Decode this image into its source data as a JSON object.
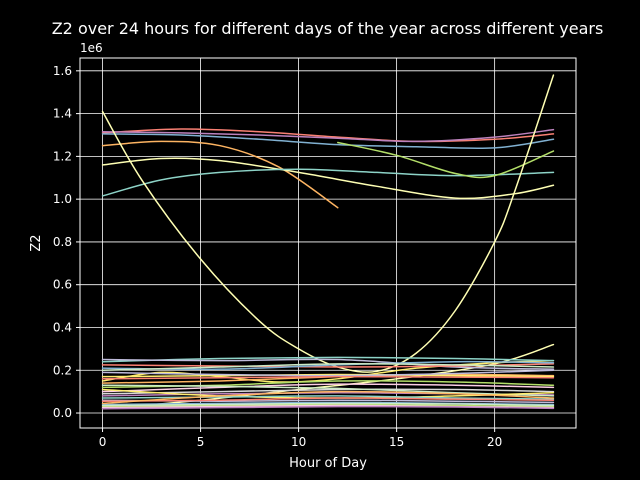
{
  "chart_data": {
    "type": "line",
    "title": "Z2 over 24 hours for different days of the year across different years",
    "xlabel": "Hour of Day",
    "ylabel": "Z2",
    "y_offset_label": "1e6",
    "xlim": [
      -1.15,
      24.15
    ],
    "ylim": [
      -70000,
      1660000
    ],
    "x_ticks": [
      0,
      5,
      10,
      15,
      20
    ],
    "y_ticks": [
      0,
      200000,
      400000,
      600000,
      800000,
      1000000,
      1200000,
      1400000,
      1600000
    ],
    "y_tick_labels": [
      "0.0",
      "0.2",
      "0.4",
      "0.6",
      "0.8",
      "1.0",
      "1.2",
      "1.4",
      "1.6"
    ],
    "grid": true,
    "background": "#000000",
    "foreground": "#ffffff",
    "series": [
      {
        "color": "#fa8174",
        "x": [
          0,
          4,
          8,
          12,
          16,
          20,
          23
        ],
        "y": [
          1310000,
          1328000,
          1315000,
          1290000,
          1270000,
          1280000,
          1305000
        ]
      },
      {
        "color": "#81b1d2",
        "x": [
          0,
          4,
          8,
          12,
          16,
          20,
          23
        ],
        "y": [
          1305000,
          1300000,
          1280000,
          1255000,
          1245000,
          1240000,
          1280000
        ]
      },
      {
        "color": "#bc82bd",
        "x": [
          0,
          4,
          8,
          12,
          16,
          20,
          23
        ],
        "y": [
          1315000,
          1310000,
          1300000,
          1285000,
          1270000,
          1290000,
          1325000
        ]
      },
      {
        "color": "#fdb462",
        "x": [
          0,
          3,
          6,
          9,
          12
        ],
        "y": [
          1250000,
          1270000,
          1250000,
          1150000,
          960000
        ]
      },
      {
        "color": "#feffb3",
        "x": [
          0,
          3,
          6,
          10,
          14,
          18,
          21,
          23
        ],
        "y": [
          1160000,
          1190000,
          1180000,
          1125000,
          1060000,
          1005000,
          1025000,
          1065000
        ]
      },
      {
        "color": "#8dd3c7",
        "x": [
          0,
          3,
          6,
          10,
          14,
          18,
          23
        ],
        "y": [
          1015000,
          1090000,
          1125000,
          1140000,
          1125000,
          1110000,
          1125000
        ]
      },
      {
        "color": "#b3de69",
        "x": [
          12,
          15,
          18,
          20,
          23
        ],
        "y": [
          1265000,
          1205000,
          1120000,
          1110000,
          1225000
        ]
      },
      {
        "color": "#ffffb3",
        "x": [
          0,
          2,
          5,
          8,
          10,
          12,
          14,
          16,
          18,
          20,
          21,
          23
        ],
        "y": [
          1410000,
          1090000,
          720000,
          430000,
          300000,
          215000,
          195000,
          280000,
          480000,
          800000,
          1030000,
          1580000
        ]
      },
      {
        "color": "#ffffb3",
        "x": [
          0,
          5,
          10,
          15,
          20,
          23
        ],
        "y": [
          20000,
          60000,
          110000,
          160000,
          230000,
          320000
        ]
      },
      {
        "color": "#ffed6f",
        "x": [
          0,
          3,
          6,
          9,
          12,
          16,
          20,
          23
        ],
        "y": [
          150000,
          190000,
          170000,
          145000,
          160000,
          210000,
          235000,
          245000
        ]
      },
      {
        "color": "#8dd3c7",
        "x": [
          0,
          6,
          12,
          18,
          23
        ],
        "y": [
          240000,
          255000,
          260000,
          255000,
          245000
        ]
      },
      {
        "color": "#bebada",
        "x": [
          0,
          6,
          12,
          18,
          23
        ],
        "y": [
          250000,
          245000,
          250000,
          215000,
          205000
        ]
      },
      {
        "color": "#fb8072",
        "x": [
          0,
          6,
          12,
          18,
          23
        ],
        "y": [
          225000,
          220000,
          215000,
          220000,
          230000
        ]
      },
      {
        "color": "#80b1d3",
        "x": [
          0,
          6,
          12,
          18,
          23
        ],
        "y": [
          210000,
          205000,
          225000,
          240000,
          235000
        ]
      },
      {
        "color": "#ccebc5",
        "x": [
          0,
          6,
          12,
          18,
          23
        ],
        "y": [
          200000,
          215000,
          230000,
          225000,
          215000
        ]
      },
      {
        "color": "#fdb462",
        "x": [
          0,
          6,
          12,
          18,
          23
        ],
        "y": [
          140000,
          150000,
          170000,
          180000,
          175000
        ]
      },
      {
        "color": "#b3de69",
        "x": [
          0,
          6,
          12,
          18,
          23
        ],
        "y": [
          120000,
          130000,
          150000,
          145000,
          130000
        ]
      },
      {
        "color": "#fccde5",
        "x": [
          0,
          6,
          12,
          18,
          23
        ],
        "y": [
          100000,
          120000,
          135000,
          130000,
          120000
        ]
      },
      {
        "color": "#d9d9d9",
        "x": [
          0,
          6,
          12,
          18,
          23
        ],
        "y": [
          90000,
          100000,
          110000,
          110000,
          100000
        ]
      },
      {
        "color": "#bc80bd",
        "x": [
          0,
          6,
          12,
          18,
          23
        ],
        "y": [
          80000,
          90000,
          95000,
          90000,
          85000
        ]
      },
      {
        "color": "#ccebc5",
        "x": [
          0,
          6,
          12,
          18,
          23
        ],
        "y": [
          130000,
          125000,
          115000,
          95000,
          80000
        ]
      },
      {
        "color": "#ffed6f",
        "x": [
          0,
          6,
          12,
          18,
          23
        ],
        "y": [
          110000,
          80000,
          70000,
          80000,
          95000
        ]
      },
      {
        "color": "#8dd3c7",
        "x": [
          0,
          6,
          12,
          18,
          23
        ],
        "y": [
          70000,
          75000,
          80000,
          70000,
          65000
        ]
      },
      {
        "color": "#bebada",
        "x": [
          0,
          6,
          12,
          18,
          23
        ],
        "y": [
          60000,
          55000,
          60000,
          55000,
          50000
        ]
      },
      {
        "color": "#fb8072",
        "x": [
          0,
          6,
          12,
          18,
          23
        ],
        "y": [
          55000,
          60000,
          70000,
          65000,
          60000
        ]
      },
      {
        "color": "#80b1d3",
        "x": [
          0,
          6,
          12,
          18,
          23
        ],
        "y": [
          40000,
          45000,
          50000,
          45000,
          40000
        ]
      },
      {
        "color": "#fdb462",
        "x": [
          0,
          6,
          12,
          18,
          23
        ],
        "y": [
          45000,
          80000,
          100000,
          90000,
          70000
        ]
      },
      {
        "color": "#b3de69",
        "x": [
          0,
          6,
          12,
          18,
          23
        ],
        "y": [
          30000,
          35000,
          40000,
          35000,
          30000
        ]
      },
      {
        "color": "#fccde5",
        "x": [
          0,
          6,
          12,
          18,
          23
        ],
        "y": [
          25000,
          30000,
          35000,
          30000,
          25000
        ]
      },
      {
        "color": "#bc80bd",
        "x": [
          0,
          6,
          12,
          18,
          23
        ],
        "y": [
          20000,
          25000,
          30000,
          28000,
          22000
        ]
      },
      {
        "color": "#ccebc5",
        "x": [
          0,
          6,
          12,
          18,
          23
        ],
        "y": [
          35000,
          40000,
          45000,
          42000,
          35000
        ]
      },
      {
        "color": "#ffed6f",
        "x": [
          0,
          6,
          12,
          18,
          23
        ],
        "y": [
          170000,
          175000,
          180000,
          175000,
          170000
        ]
      },
      {
        "color": "#bebada",
        "x": [
          0,
          6,
          12,
          18,
          23
        ],
        "y": [
          190000,
          180000,
          175000,
          185000,
          200000
        ]
      },
      {
        "color": "#fb8072",
        "x": [
          0,
          6,
          12,
          18,
          23
        ],
        "y": [
          160000,
          165000,
          170000,
          168000,
          165000
        ]
      }
    ]
  }
}
